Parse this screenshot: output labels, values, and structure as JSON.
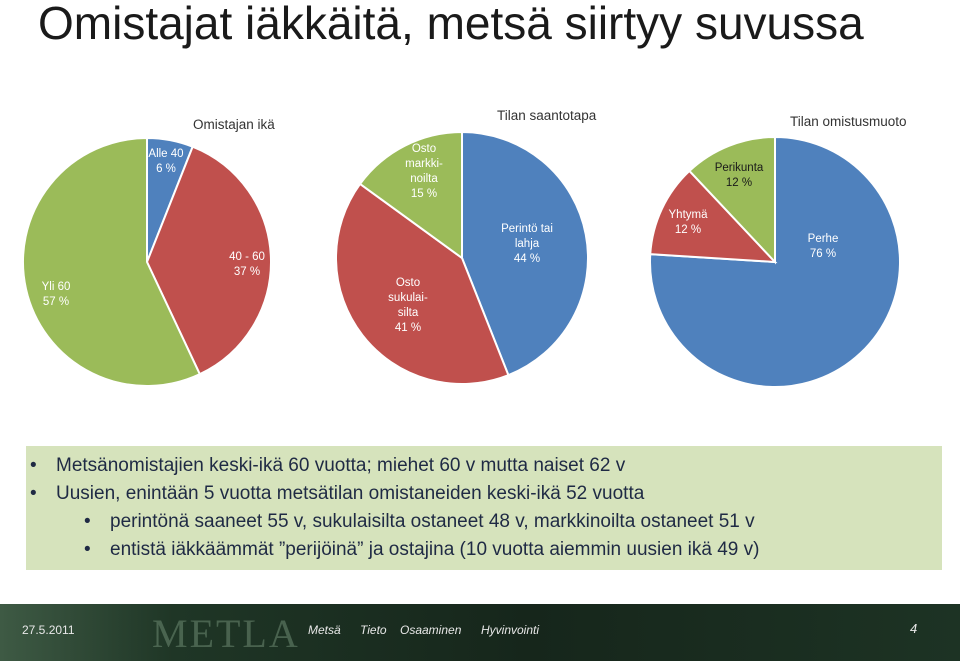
{
  "slide": {
    "title": "Omistajat iäkkäitä, metsä siirtyy suvussa"
  },
  "chart_data": [
    {
      "type": "pie",
      "title": "Omistajan ikä",
      "slices": [
        {
          "label": [
            "Alle 40",
            "6 %"
          ],
          "value": 6,
          "color": "#4f81bd"
        },
        {
          "label": [
            "40 - 60",
            "37 %"
          ],
          "value": 37,
          "color": "#c0504d"
        },
        {
          "label": [
            "Yli 60",
            "57 %"
          ],
          "value": 57,
          "color": "#9bbb59"
        }
      ]
    },
    {
      "type": "pie",
      "title": "Tilan saantotapa",
      "slices": [
        {
          "label": [
            "Perintö tai",
            "lahja",
            "44 %"
          ],
          "value": 44,
          "color": "#4f81bd"
        },
        {
          "label": [
            "Osto",
            "sukulai-",
            "silta",
            "41 %"
          ],
          "value": 41,
          "color": "#c0504d"
        },
        {
          "label": [
            "Osto",
            "markki-",
            "noilta",
            "15 %"
          ],
          "value": 15,
          "color": "#9bbb59"
        }
      ]
    },
    {
      "type": "pie",
      "title": "Tilan omistusmuoto",
      "slices": [
        {
          "label": [
            "Perhe",
            "76 %"
          ],
          "value": 76,
          "color": "#4f81bd"
        },
        {
          "label": [
            "Yhtymä",
            "12 %"
          ],
          "value": 12,
          "color": "#c0504d"
        },
        {
          "label": [
            "Perikunta",
            "12 %"
          ],
          "value": 12,
          "color": "#9bbb59"
        }
      ]
    }
  ],
  "bullets": [
    {
      "level": 1,
      "text": "Metsänomistajien keski-ikä 60 vuotta; miehet 60 v mutta naiset 62 v"
    },
    {
      "level": 1,
      "text": "Uusien, enintään 5 vuotta metsätilan omistaneiden keski-ikä 52 vuotta"
    },
    {
      "level": 2,
      "text": "perintönä saaneet 55 v, sukulaisilta ostaneet 48 v, markkinoilta ostaneet 51 v"
    },
    {
      "level": 2,
      "text": "entistä iäkkäämmät ”perijöinä” ja ostajina (10 vuotta aiemmin uusien ikä 49 v)"
    }
  ],
  "bullet_glyph": "•",
  "footer": {
    "date": "27.5.2011",
    "logo": "METLA",
    "nav": [
      "Metsä",
      "Tieto",
      "Osaaminen",
      "Hyvinvointi"
    ],
    "page": "4"
  }
}
